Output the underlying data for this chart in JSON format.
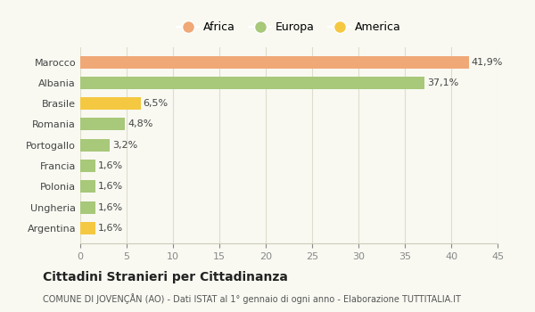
{
  "categories": [
    "Argentina",
    "Ungheria",
    "Polonia",
    "Francia",
    "Portogallo",
    "Romania",
    "Brasile",
    "Albania",
    "Marocco"
  ],
  "values": [
    1.6,
    1.6,
    1.6,
    1.6,
    3.2,
    4.8,
    6.5,
    37.1,
    41.9
  ],
  "labels": [
    "1,6%",
    "1,6%",
    "1,6%",
    "1,6%",
    "3,2%",
    "4,8%",
    "6,5%",
    "37,1%",
    "41,9%"
  ],
  "colors": [
    "#f5c842",
    "#a8c87a",
    "#a8c87a",
    "#a8c87a",
    "#a8c87a",
    "#a8c87a",
    "#f5c842",
    "#a8c87a",
    "#f0a877"
  ],
  "legend_labels": [
    "Africa",
    "Europa",
    "America"
  ],
  "legend_colors": [
    "#f0a877",
    "#a8c87a",
    "#f5c842"
  ],
  "title": "Cittadini Stranieri per Cittadinanza",
  "subtitle": "COMUNE DI JOVENÇÅN (AO) - Dati ISTAT al 1° gennaio di ogni anno - Elaborazione TUTTITALIA.IT",
  "xlim": [
    0,
    45
  ],
  "xticks": [
    0,
    5,
    10,
    15,
    20,
    25,
    30,
    35,
    40,
    45
  ],
  "background_color": "#f9f9f2",
  "grid_color": "#ddddcc"
}
